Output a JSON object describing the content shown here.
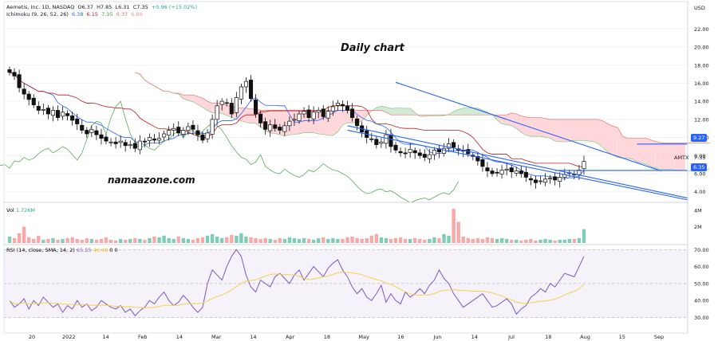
{
  "header": {
    "symbol_line": "Aemetis, Inc. 1D, NASDAQ",
    "ohlc": {
      "o": "O6.37",
      "h": "H7.85",
      "l": "L6.31",
      "c": "C7.35",
      "chg": "+0.96 (+15.02%)"
    },
    "ichimoku_label": "Ichimoku (9, 26, 52, 26)",
    "ichimoku_values": [
      "6.38",
      "6.15",
      "7.35",
      "6.37",
      "6.88"
    ],
    "ichimoku_colors": [
      "#2962ff",
      "#b71c1c",
      "#43a047",
      "#e57373",
      "#ef9a9a"
    ]
  },
  "annotations": {
    "title": "Daily chart",
    "site": "namaazone.com"
  },
  "price_axis": {
    "currency": "USD",
    "ticks": [
      "22.00",
      "20.00",
      "18.00",
      "16.00",
      "14.00",
      "12.00",
      "10.00",
      "8.00",
      "6.00",
      "4.00"
    ],
    "badge_upper": "9.27",
    "badge_lower": "6.35",
    "symbol_tag": "AMTX",
    "last_price": "7.35"
  },
  "volume": {
    "label": "Vol",
    "value": "1.726M",
    "ticks": [
      "4M",
      "2M"
    ]
  },
  "rsi": {
    "label": "RSI (14, close, SMA, 14, 2)",
    "value": "65.55",
    "sma": "46.48",
    "extra": [
      "0",
      "0"
    ],
    "ticks": [
      "70.00",
      "60.00",
      "50.00",
      "40.00",
      "30.00"
    ]
  },
  "time_axis": [
    "20",
    "2022",
    "14",
    "Feb",
    "14",
    "Mar",
    "14",
    "Apr",
    "18",
    "May",
    "16",
    "Jun",
    "14",
    "Jul",
    "18",
    "Aug",
    "15",
    "Sep"
  ],
  "colors": {
    "up": "#26a69a",
    "down": "#ef5350",
    "candle": "#111111",
    "trend": "#2962ff",
    "rsi": "#7e57c2",
    "rsi_ma": "#f5d24a",
    "cloud_green": "#c8e6c9",
    "cloud_red": "#ffcdd2",
    "tenkan": "#2962ff",
    "kijun": "#b71c1c",
    "chikou": "#43a047"
  },
  "chart_data": {
    "type": "candlestick",
    "title": "Daily chart",
    "symbol": "AMTX",
    "price_range": [
      3,
      23
    ],
    "closes": [
      17.2,
      16.8,
      15.5,
      14.8,
      14.2,
      13.6,
      13.0,
      13.1,
      12.6,
      13.0,
      12.2,
      12.8,
      12.4,
      11.9,
      11.5,
      10.8,
      10.4,
      10.9,
      10.3,
      9.9,
      9.6,
      9.5,
      9.3,
      9.6,
      9.1,
      9.2,
      8.8,
      9.6,
      9.5,
      10.0,
      9.7,
      9.9,
      10.4,
      10.8,
      11.0,
      10.5,
      10.8,
      11.2,
      10.9,
      10.3,
      9.7,
      10.5,
      12.0,
      13.5,
      14.0,
      13.8,
      12.6,
      14.4,
      15.6,
      16.2,
      14.3,
      12.6,
      11.6,
      10.9,
      11.4,
      11.0,
      10.8,
      11.3,
      11.8,
      12.0,
      12.6,
      12.9,
      12.2,
      12.8,
      13.0,
      12.3,
      12.9,
      13.4,
      13.8,
      13.5,
      13.0,
      12.2,
      11.3,
      10.6,
      10.0,
      9.8,
      9.2,
      9.5,
      10.3,
      9.0,
      8.6,
      8.3,
      8.2,
      8.7,
      8.3,
      8.0,
      7.8,
      8.1,
      8.6,
      8.4,
      8.8,
      9.3,
      8.9,
      8.6,
      8.5,
      8.2,
      7.9,
      7.4,
      6.8,
      6.3,
      6.0,
      6.1,
      6.4,
      6.5,
      6.2,
      6.3,
      6.0,
      5.6,
      5.3,
      5.0,
      5.2,
      5.4,
      5.5,
      5.3,
      5.6,
      5.9,
      6.1,
      5.9,
      6.4,
      7.35
    ],
    "trendlines_price": [
      {
        "name": "upper",
        "x": [
          80,
          135
        ],
        "y": [
          16.1,
          6.3
        ]
      },
      {
        "name": "lower-1",
        "x": [
          70,
          150
        ],
        "y": [
          11.3,
          3.3
        ]
      },
      {
        "name": "lower-2",
        "x": [
          70,
          150
        ],
        "y": [
          10.8,
          3.1
        ]
      },
      {
        "name": "resistance",
        "x": [
          130,
          240
        ],
        "y": [
          9.27,
          9.27
        ]
      },
      {
        "name": "support",
        "x": [
          113,
          240
        ],
        "y": [
          6.35,
          6.35
        ]
      }
    ],
    "rsi_range": [
      26,
      72
    ],
    "rsi_values": [
      40,
      36,
      38,
      41,
      35,
      40,
      37,
      42,
      39,
      36,
      38,
      33,
      37,
      35,
      40,
      36,
      38,
      34,
      36,
      40,
      38,
      36,
      35,
      37,
      33,
      35,
      31,
      34,
      36,
      40,
      38,
      42,
      45,
      40,
      37,
      39,
      43,
      40,
      36,
      33,
      36,
      50,
      58,
      55,
      52,
      60,
      66,
      70,
      66,
      55,
      48,
      45,
      52,
      50,
      48,
      54,
      56,
      53,
      50,
      55,
      58,
      52,
      56,
      60,
      57,
      54,
      59,
      62,
      64,
      58,
      54,
      48,
      44,
      47,
      42,
      40,
      44,
      49,
      39,
      44,
      40,
      38,
      45,
      42,
      44,
      47,
      44,
      49,
      52,
      58,
      53,
      50,
      44,
      40,
      36,
      38,
      40,
      42,
      44,
      40,
      36,
      37,
      39,
      41,
      38,
      32,
      35,
      37,
      42,
      44,
      47,
      45,
      50,
      48,
      52,
      56,
      55,
      54,
      60,
      66
    ],
    "volume_values": [
      0.8,
      0.6,
      1.2,
      2.0,
      0.7,
      0.5,
      0.9,
      0.4,
      0.5,
      0.6,
      0.4,
      0.5,
      0.6,
      0.7,
      0.5,
      0.4,
      0.6,
      0.5,
      0.4,
      0.5,
      0.7,
      0.4,
      0.3,
      0.5,
      0.4,
      0.5,
      0.6,
      0.5,
      0.4,
      0.6,
      0.8,
      0.7,
      0.9,
      0.6,
      0.5,
      0.8,
      0.6,
      0.5,
      0.4,
      0.6,
      0.7,
      0.9,
      1.1,
      0.8,
      0.6,
      0.7,
      1.0,
      0.9,
      1.2,
      0.8,
      0.7,
      0.6,
      0.5,
      0.6,
      0.5,
      0.4,
      0.6,
      0.5,
      0.7,
      0.6,
      0.5,
      0.6,
      0.5,
      0.4,
      0.6,
      0.7,
      0.5,
      0.6,
      0.5,
      0.5,
      0.7,
      0.8,
      0.6,
      0.5,
      0.6,
      0.9,
      1.1,
      0.7,
      0.6,
      0.5,
      0.6,
      0.7,
      0.5,
      0.5,
      0.6,
      0.5,
      0.4,
      0.5,
      0.7,
      0.6,
      1.1,
      0.9,
      4.2,
      2.6,
      0.8,
      0.6,
      0.5,
      0.6,
      0.5,
      0.7,
      0.6,
      0.5,
      0.6,
      0.5,
      0.4,
      0.4,
      0.3,
      0.4,
      0.5,
      0.3,
      0.4,
      0.5,
      0.4,
      0.3,
      0.4,
      0.4,
      0.5,
      0.5,
      0.6,
      1.7
    ],
    "volume_range": [
      0,
      4.8
    ]
  }
}
